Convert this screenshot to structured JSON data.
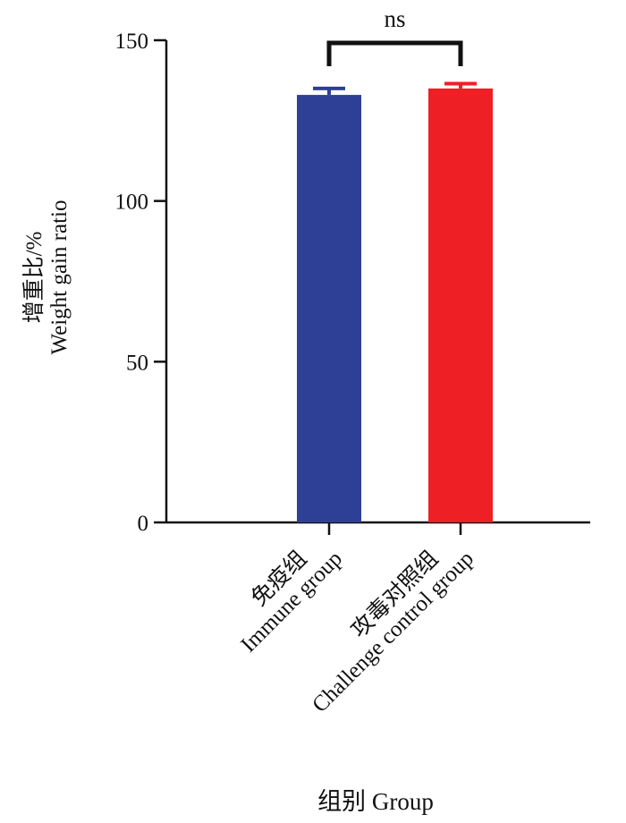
{
  "chart_data": {
    "type": "bar",
    "categories": [
      {
        "line1": "免疫组",
        "line2": "Immune group"
      },
      {
        "line1": "攻毒对照组",
        "line2": "Challenge control group"
      }
    ],
    "series": [
      {
        "values": [
          133,
          135
        ],
        "errors": [
          2,
          1.5
        ],
        "colors": [
          "#2E4095",
          "#EE1F25"
        ]
      }
    ],
    "significance": {
      "label": "ns",
      "between": [
        0,
        1
      ]
    },
    "ylim": [
      0,
      150
    ],
    "yticks": [
      0,
      50,
      100,
      150
    ],
    "ylabel": {
      "line1": "增重比/%",
      "line2": "Weight gain ratio"
    },
    "xlabel": "组别 Group",
    "grid": false
  }
}
